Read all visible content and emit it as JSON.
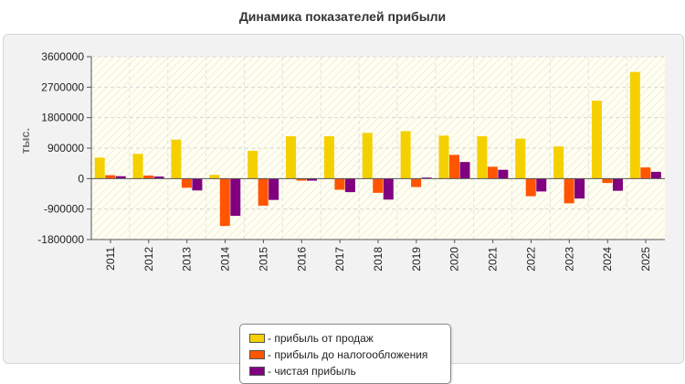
{
  "chart_data": {
    "type": "bar",
    "title": "Динамика показателей прибыли",
    "ylabel": "тыс.",
    "xlabel": "",
    "ylim": [
      -1800000,
      3600000
    ],
    "yticks": [
      "3600000",
      "2700000",
      "1800000",
      "900000",
      "0",
      "-900000",
      "-1800000"
    ],
    "grid": true,
    "legend_position": "bottom",
    "categories": [
      "2011",
      "2012",
      "2013",
      "2014",
      "2015",
      "2016",
      "2017",
      "2018",
      "2019",
      "2020",
      "2021",
      "2022",
      "2023",
      "2024",
      "2025"
    ],
    "series": [
      {
        "name": "прибыль от продаж",
        "color": "#f5d000",
        "values": [
          620000,
          730000,
          1150000,
          110000,
          820000,
          1250000,
          1250000,
          1350000,
          1400000,
          1270000,
          1250000,
          1180000,
          950000,
          2300000,
          3150000
        ]
      },
      {
        "name": "прибыль до налогообложения",
        "color": "#ff5500",
        "values": [
          100000,
          90000,
          -270000,
          -1400000,
          -800000,
          -60000,
          -330000,
          -420000,
          -250000,
          700000,
          350000,
          -520000,
          -730000,
          -130000,
          330000
        ]
      },
      {
        "name": "чистая прибыль",
        "color": "#800080",
        "values": [
          70000,
          60000,
          -350000,
          -1100000,
          -630000,
          -60000,
          -400000,
          -620000,
          30000,
          490000,
          260000,
          -380000,
          -590000,
          -360000,
          200000
        ]
      }
    ]
  }
}
